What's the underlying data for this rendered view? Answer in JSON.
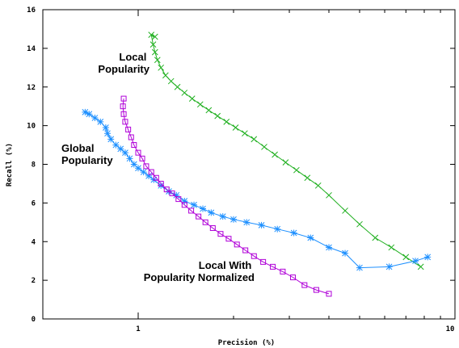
{
  "chart_data": {
    "type": "line",
    "title": "",
    "xlabel": "Precision (%)",
    "ylabel": "Recall (%)",
    "xscale": "log",
    "xlim": [
      0.5,
      10
    ],
    "ylim": [
      0,
      16
    ],
    "xticks": [
      {
        "value": 1,
        "label": "1"
      },
      {
        "value": 10,
        "label": "10"
      }
    ],
    "yticks": [
      0,
      2,
      4,
      6,
      8,
      10,
      12,
      14,
      16
    ],
    "grid": false,
    "legend": "none",
    "annotations": [
      {
        "lines": [
          "Local",
          "Popularity"
        ],
        "series": "local"
      },
      {
        "lines": [
          "Global",
          "Popularity"
        ],
        "series": "global"
      },
      {
        "lines": [
          "Local With",
          "Popularity Normalized"
        ],
        "series": "normalized"
      }
    ],
    "series": [
      {
        "id": "local",
        "color": "#22b022",
        "marker": "x",
        "x": [
          1.13,
          1.1,
          1.115,
          1.13,
          1.15,
          1.18,
          1.22,
          1.27,
          1.33,
          1.4,
          1.48,
          1.57,
          1.67,
          1.78,
          1.9,
          2.03,
          2.17,
          2.32,
          2.5,
          2.7,
          2.92,
          3.16,
          3.42,
          3.7,
          4.0,
          4.5,
          5.0,
          5.6,
          6.3,
          7.0,
          7.8
        ],
        "y": [
          14.6,
          14.7,
          14.2,
          13.8,
          13.4,
          13.0,
          12.6,
          12.3,
          12.0,
          11.7,
          11.4,
          11.1,
          10.8,
          10.5,
          10.2,
          9.9,
          9.6,
          9.3,
          8.9,
          8.5,
          8.1,
          7.7,
          7.3,
          6.9,
          6.4,
          5.6,
          4.9,
          4.2,
          3.7,
          3.2,
          2.7
        ]
      },
      {
        "id": "global",
        "color": "#1e90ff",
        "marker": "*",
        "x": [
          0.68,
          0.7,
          0.73,
          0.76,
          0.79,
          0.8,
          0.82,
          0.85,
          0.88,
          0.91,
          0.94,
          0.97,
          1.0,
          1.04,
          1.08,
          1.12,
          1.18,
          1.25,
          1.32,
          1.4,
          1.5,
          1.6,
          1.7,
          1.85,
          2.0,
          2.2,
          2.45,
          2.75,
          3.1,
          3.5,
          4.0,
          4.5,
          5.0,
          6.2,
          7.5,
          8.2
        ],
        "y": [
          10.7,
          10.6,
          10.4,
          10.2,
          9.9,
          9.6,
          9.3,
          9.0,
          8.8,
          8.6,
          8.3,
          8.0,
          7.8,
          7.6,
          7.4,
          7.2,
          6.9,
          6.6,
          6.4,
          6.1,
          5.9,
          5.7,
          5.5,
          5.3,
          5.15,
          5.0,
          4.85,
          4.65,
          4.45,
          4.2,
          3.7,
          3.4,
          2.65,
          2.7,
          3.0,
          3.2
        ]
      },
      {
        "id": "normalized",
        "color": "#b000d8",
        "marker": "square",
        "x": [
          0.9,
          0.895,
          0.9,
          0.91,
          0.93,
          0.95,
          0.97,
          1.0,
          1.03,
          1.06,
          1.1,
          1.14,
          1.18,
          1.23,
          1.28,
          1.34,
          1.4,
          1.47,
          1.55,
          1.63,
          1.72,
          1.82,
          1.93,
          2.05,
          2.18,
          2.32,
          2.48,
          2.66,
          2.86,
          3.08,
          3.35,
          3.65,
          4.0
        ],
        "y": [
          11.4,
          11.0,
          10.6,
          10.2,
          9.8,
          9.4,
          9.0,
          8.6,
          8.3,
          7.9,
          7.6,
          7.3,
          7.0,
          6.7,
          6.5,
          6.2,
          5.9,
          5.6,
          5.3,
          5.0,
          4.7,
          4.4,
          4.15,
          3.85,
          3.55,
          3.25,
          2.95,
          2.7,
          2.45,
          2.15,
          1.75,
          1.5,
          1.3
        ]
      }
    ]
  }
}
